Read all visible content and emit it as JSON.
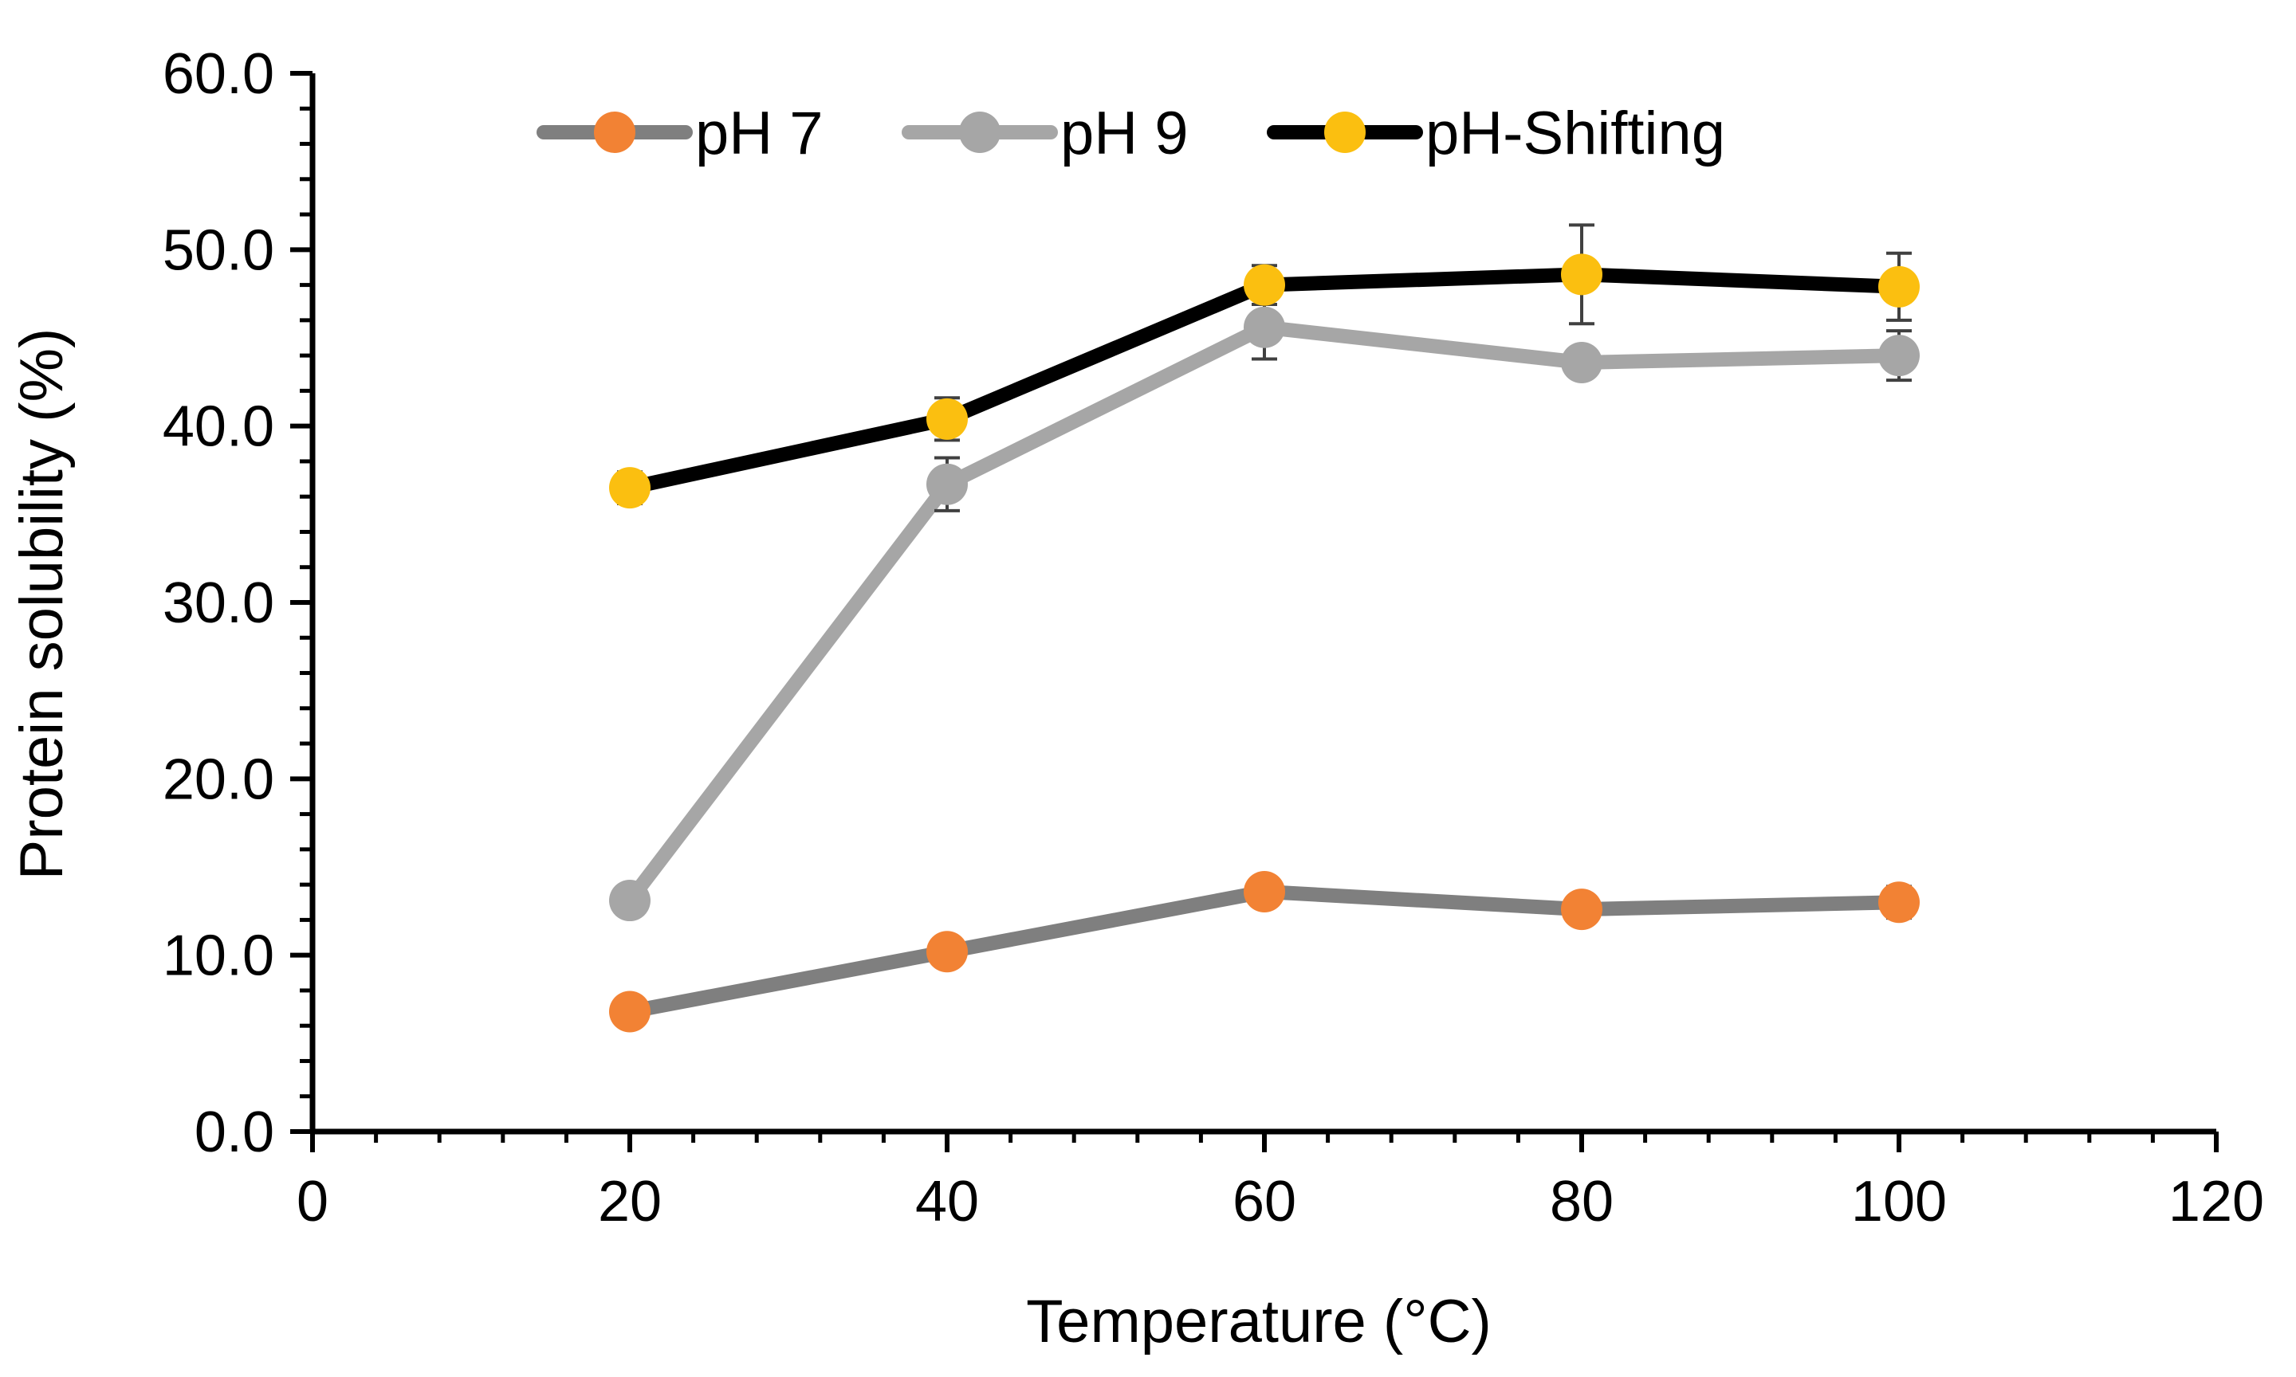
{
  "chart_data": {
    "type": "line",
    "title": "",
    "xlabel": "Temperature (°C)",
    "ylabel": "Protein solubility (%)",
    "xlim": [
      0,
      120
    ],
    "ylim": [
      0,
      60
    ],
    "x_ticks": [
      "0",
      "20",
      "40",
      "60",
      "80",
      "100",
      "120"
    ],
    "y_ticks": [
      "0.0",
      "10.0",
      "20.0",
      "30.0",
      "40.0",
      "50.0",
      "60.0"
    ],
    "grid": false,
    "legend_position": "top",
    "x": [
      20,
      40,
      60,
      80,
      100
    ],
    "series": [
      {
        "name": "pH 7",
        "values": [
          6.8,
          10.2,
          13.6,
          12.6,
          13.0
        ],
        "errors": [
          0.7,
          0.8,
          0.8,
          0.8,
          0.9
        ],
        "line_color": "#7f7f7f",
        "marker_color": "#f28234"
      },
      {
        "name": "pH 9",
        "values": [
          13.1,
          36.7,
          45.6,
          43.6,
          44.0
        ],
        "errors": [
          0.5,
          1.5,
          1.8,
          0.6,
          1.4
        ],
        "line_color": "#a6a6a6",
        "marker_color": "#a6a6a6"
      },
      {
        "name": "pH-Shifting",
        "values": [
          36.5,
          40.4,
          48.0,
          48.6,
          47.9
        ],
        "errors": [
          0.9,
          1.2,
          1.1,
          2.8,
          1.9
        ],
        "line_color": "#000000",
        "marker_color": "#fbbf10"
      }
    ]
  }
}
